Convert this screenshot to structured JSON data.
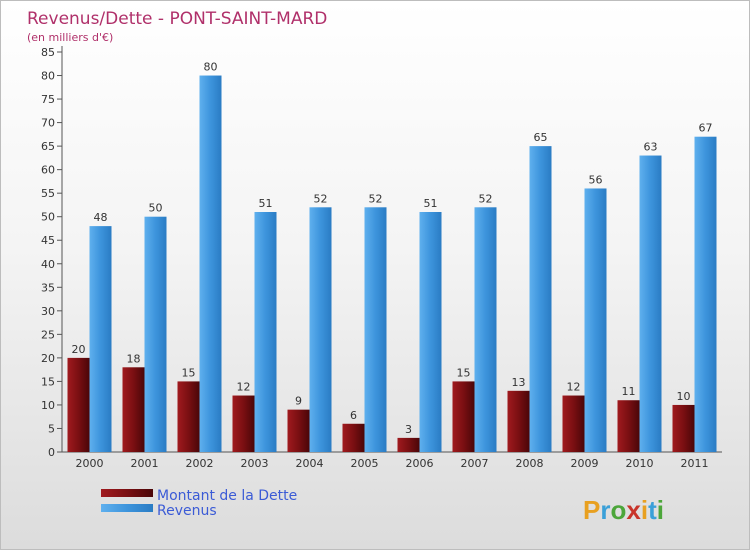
{
  "chart_data": {
    "type": "bar",
    "title": "Revenus/Dette - PONT-SAINT-MARD",
    "subtitle": "(en milliers d'€)",
    "categories": [
      "2000",
      "2001",
      "2002",
      "2003",
      "2004",
      "2005",
      "2006",
      "2007",
      "2008",
      "2009",
      "2010",
      "2011"
    ],
    "series": [
      {
        "name": "Montant de la Dette",
        "color": "#7a0f12",
        "values": [
          20,
          18,
          15,
          12,
          9,
          6,
          3,
          15,
          13,
          12,
          11,
          10
        ]
      },
      {
        "name": "Revenus",
        "color": "#3d94dc",
        "values": [
          48,
          50,
          80,
          51,
          52,
          52,
          51,
          52,
          65,
          56,
          63,
          67
        ]
      }
    ],
    "ylim": [
      0,
      85
    ],
    "ytick_step": 5,
    "grid": false,
    "legend_position": "bottom-left"
  },
  "brand": {
    "text": "Proxiti"
  }
}
